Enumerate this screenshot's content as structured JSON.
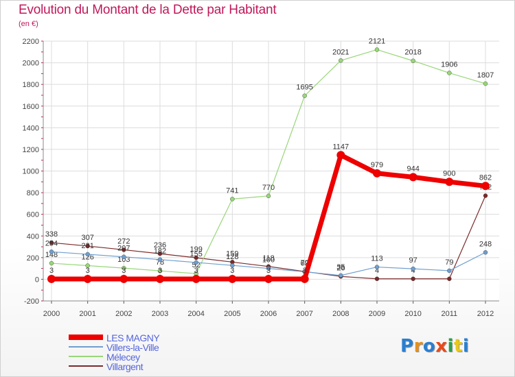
{
  "title": "Evolution du Montant de la Dette par Habitant",
  "subtitle": "(en €)",
  "logo": {
    "text": "Proxiti",
    "colors": [
      "#2a7fd0",
      "#e8901a",
      "#2a7fd0",
      "#e84a1a",
      "#2aa04a",
      "#e8c81a",
      "#2a7fd0"
    ]
  },
  "chart_data": {
    "type": "line",
    "x": [
      "2000",
      "2001",
      "2002",
      "2003",
      "2004",
      "2005",
      "2006",
      "2007",
      "2008",
      "2009",
      "2010",
      "2011",
      "2012"
    ],
    "ylim": [
      -200,
      2200
    ],
    "yticks": [
      "-200",
      "0",
      "200",
      "400",
      "600",
      "800",
      "1000",
      "1200",
      "1400",
      "1600",
      "1800",
      "2000",
      "2200"
    ],
    "grid": true,
    "legend_position": "bottom-left",
    "series": [
      {
        "name": "Villargent",
        "color": "#7a2a2a",
        "width": 1.2,
        "values": [
          338,
          307,
          272,
          236,
          199,
          159,
          118,
          72,
          26,
          4,
          4,
          4,
          772
        ],
        "labels": [
          "338",
          "307",
          "272",
          "236",
          "199",
          "159",
          "118",
          "72",
          "26",
          "4",
          "4",
          "",
          "772"
        ]
      },
      {
        "name": "Mélecey",
        "color": "#99d67a",
        "width": 1.2,
        "values": [
          148,
          126,
          103,
          78,
          52,
          741,
          770,
          1695,
          2021,
          2121,
          2018,
          1906,
          1807
        ],
        "labels": [
          "148",
          "126",
          "103",
          "78",
          "52",
          "741",
          "770",
          "1695",
          "2021",
          "2121",
          "2018",
          "1906",
          "1807"
        ]
      },
      {
        "name": "Villers-la-Ville",
        "color": "#6f9fcf",
        "width": 1.2,
        "values": [
          254,
          231,
          207,
          182,
          155,
          128,
          100,
          69,
          35,
          113,
          97,
          79,
          248
        ],
        "labels": [
          "254",
          "231",
          "207",
          "182",
          "155",
          "128",
          "100",
          "69",
          "35",
          "113",
          "97",
          "79",
          "248"
        ]
      },
      {
        "name": "LES MAGNY",
        "color": "#ee0000",
        "width": 7,
        "values": [
          3,
          3,
          3,
          3,
          3,
          3,
          3,
          3,
          1147,
          979,
          944,
          900,
          862
        ],
        "labels": [
          "3",
          "3",
          "3",
          "3",
          "3",
          "3",
          "3",
          "3",
          "1147",
          "979",
          "944",
          "900",
          "862"
        ]
      }
    ],
    "legend": [
      {
        "name": "LES MAGNY",
        "color": "#ee0000",
        "width": 8
      },
      {
        "name": "Villers-la-Ville",
        "color": "#6f9fcf",
        "width": 2
      },
      {
        "name": "Mélecey",
        "color": "#99d67a",
        "width": 2
      },
      {
        "name": "Villargent",
        "color": "#7a2a2a",
        "width": 2
      }
    ]
  }
}
